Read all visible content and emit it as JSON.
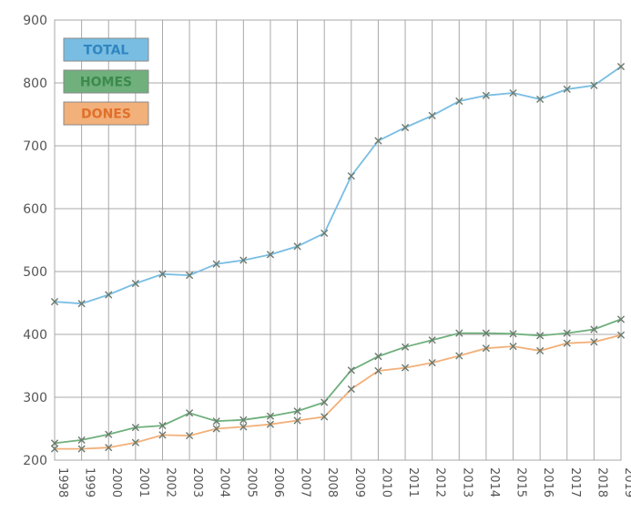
{
  "chart_data": {
    "type": "line",
    "title": "",
    "xlabel": "",
    "ylabel": "",
    "x": [
      "1998",
      "1999",
      "2000",
      "2001",
      "2002",
      "2003",
      "2004",
      "2005",
      "2006",
      "2007",
      "2008",
      "2009",
      "2010",
      "2011",
      "2012",
      "2013",
      "2014",
      "2015",
      "2016",
      "2017",
      "2018",
      "2019"
    ],
    "ylim": [
      200,
      900
    ],
    "yticks": [
      "200",
      "300",
      "400",
      "500",
      "600",
      "700",
      "800",
      "900"
    ],
    "grid": true,
    "legend_position": "top-left",
    "series": [
      {
        "name": "TOTAL",
        "color": "#79bde3",
        "text_color": "#2f86c0",
        "values": [
          452,
          449,
          463,
          481,
          496,
          494,
          512,
          518,
          527,
          540,
          561,
          652,
          708,
          729,
          748,
          771,
          780,
          784,
          774,
          790,
          796,
          826
        ]
      },
      {
        "name": "HOMES",
        "color": "#6fb07c",
        "text_color": "#3c8a4c",
        "values": [
          227,
          232,
          241,
          252,
          255,
          275,
          262,
          264,
          270,
          278,
          292,
          343,
          365,
          380,
          391,
          402,
          402,
          401,
          398,
          402,
          408,
          424
        ]
      },
      {
        "name": "DONES",
        "color": "#f2b07a",
        "text_color": "#e0702c",
        "values": [
          218,
          218,
          220,
          228,
          240,
          239,
          250,
          253,
          257,
          263,
          269,
          313,
          342,
          347,
          355,
          366,
          378,
          381,
          374,
          386,
          388,
          399
        ]
      }
    ]
  }
}
